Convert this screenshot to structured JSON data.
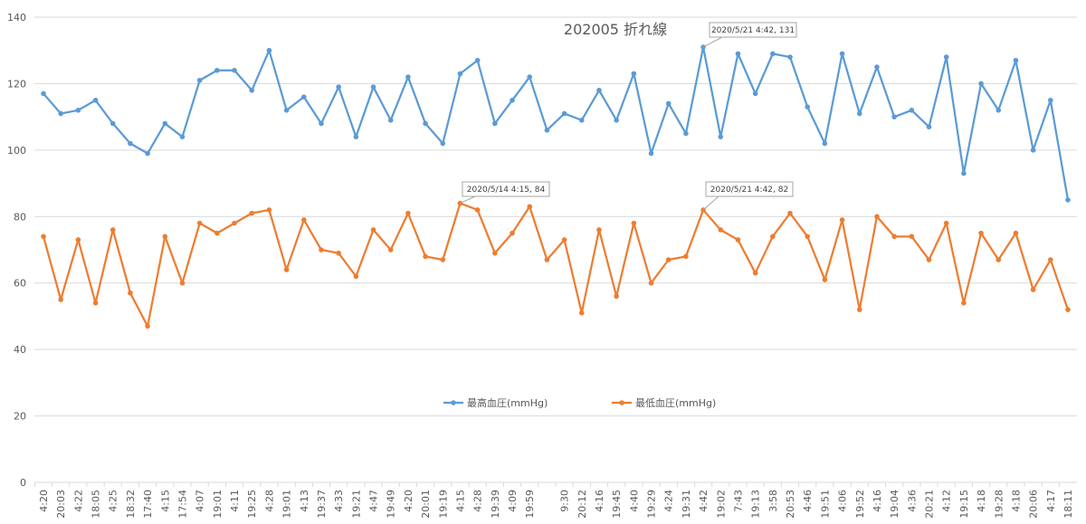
{
  "chart_data": {
    "type": "line",
    "title": "202005  折れ線",
    "categories": [
      "4:20",
      "20:03",
      "4:22",
      "18:05",
      "4:25",
      "18:32",
      "17:40",
      "4:15",
      "17:54",
      "4:07",
      "19:01",
      "4:11",
      "19:25",
      "4:28",
      "19:01",
      "4:13",
      "19:37",
      "4:33",
      "19:21",
      "4:47",
      "19:49",
      "4:20",
      "20:01",
      "19:19",
      "4:15",
      "4:28",
      "19:39",
      "4:09",
      "19:59",
      null,
      "9:30",
      "20:12",
      "4:16",
      "19:45",
      "4:40",
      "19:29",
      "4:24",
      "19:31",
      "4:42",
      "19:02",
      "7:43",
      "19:13",
      "3:58",
      "20:53",
      "4:46",
      "19:51",
      "4:06",
      "19:52",
      "4:16",
      "19:04",
      "4:36",
      "20:21",
      "4:12",
      "19:15",
      "4:18",
      "19:28",
      "4:18",
      "20:06",
      "4:17",
      "18:11"
    ],
    "series": [
      {
        "name": "最高血圧(mmHg)",
        "color": "#5b9bd5",
        "values": [
          117,
          111,
          112,
          115,
          108,
          102,
          99,
          108,
          104,
          121,
          124,
          124,
          118,
          130,
          112,
          116,
          108,
          119,
          104,
          119,
          109,
          122,
          108,
          102,
          123,
          127,
          108,
          115,
          122,
          106,
          111,
          109,
          118,
          109,
          123,
          99,
          114,
          105,
          131,
          104,
          129,
          117,
          129,
          128,
          113,
          102,
          129,
          111,
          125,
          110,
          112,
          107,
          128,
          93,
          120,
          112,
          127,
          100,
          115,
          85
        ]
      },
      {
        "name": "最低血圧(mmHg)",
        "color": "#ed7d31",
        "values": [
          74,
          55,
          73,
          54,
          76,
          57,
          47,
          74,
          60,
          78,
          75,
          78,
          81,
          82,
          64,
          79,
          70,
          69,
          62,
          76,
          70,
          81,
          68,
          67,
          84,
          82,
          69,
          75,
          83,
          67,
          73,
          51,
          76,
          56,
          78,
          60,
          67,
          68,
          82,
          76,
          73,
          63,
          74,
          81,
          74,
          61,
          79,
          52,
          80,
          74,
          74,
          67,
          78,
          54,
          75,
          67,
          75,
          58,
          67,
          52
        ]
      }
    ],
    "annotations": [
      "2020/5/21 4:42, 131",
      "2020/5/14 4:15, 84",
      "2020/5/21 4:42, 82"
    ],
    "ylim": [
      0,
      140
    ],
    "yticks": [
      0,
      20,
      40,
      60,
      80,
      100,
      120,
      140
    ],
    "grid": true,
    "legend": "bottom"
  }
}
